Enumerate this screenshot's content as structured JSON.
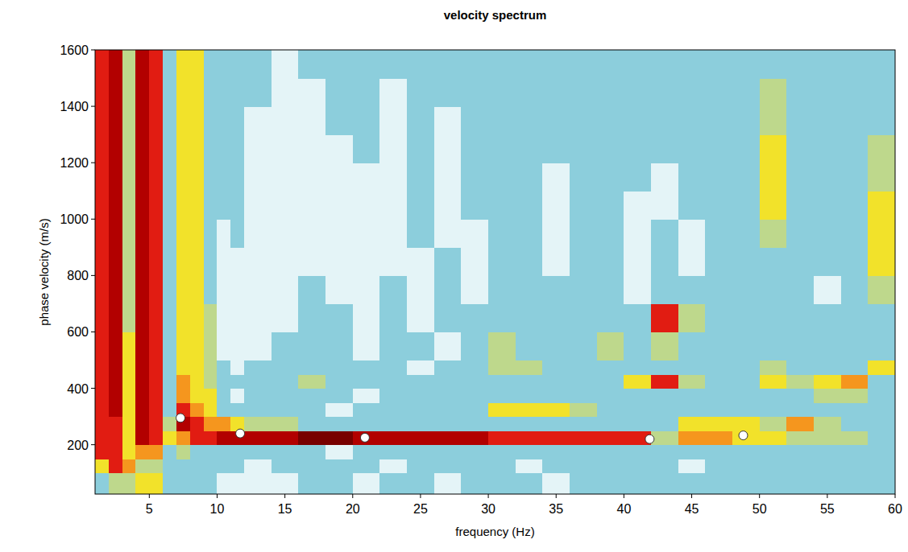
{
  "chart_data": {
    "type": "heatmap",
    "title": "velocity spectrum",
    "x_label": "frequency (Hz)",
    "y_label": "phase velocity (m/s)",
    "xlim": [
      1,
      60
    ],
    "ylim": [
      25,
      1600
    ],
    "xticks": [
      5,
      10,
      15,
      20,
      25,
      30,
      35,
      40,
      45,
      50,
      55,
      60
    ],
    "yticks": [
      200,
      400,
      600,
      800,
      1000,
      1200,
      1400,
      1600
    ],
    "grid": false,
    "x_edges": [
      1,
      2,
      3,
      4,
      5,
      6,
      7,
      8,
      9,
      10,
      11,
      12,
      14,
      16,
      18,
      20,
      22,
      24,
      26,
      28,
      30,
      32,
      34,
      36,
      38,
      40,
      42,
      44,
      46,
      48,
      50,
      52,
      54,
      56,
      58,
      60
    ],
    "y_edges": [
      25,
      100,
      150,
      200,
      250,
      300,
      350,
      400,
      450,
      500,
      600,
      700,
      800,
      900,
      1000,
      1100,
      1200,
      1300,
      1400,
      1500,
      1600
    ],
    "color_range": [
      0,
      9
    ],
    "cells": [
      [
        3,
        4,
        4,
        5,
        5,
        3,
        3,
        3,
        3,
        2,
        2,
        2,
        2,
        3,
        3,
        2,
        3,
        3,
        2,
        3,
        3,
        3,
        2,
        3,
        3,
        3,
        3,
        3,
        3,
        3,
        3,
        3,
        3,
        3,
        3
      ],
      [
        5,
        7,
        6,
        4,
        4,
        3,
        3,
        3,
        3,
        3,
        3,
        2,
        3,
        3,
        3,
        3,
        2,
        3,
        3,
        3,
        3,
        2,
        3,
        3,
        3,
        3,
        3,
        2,
        3,
        3,
        3,
        3,
        3,
        3,
        3
      ],
      [
        7,
        7,
        5,
        6,
        6,
        3,
        4,
        3,
        3,
        3,
        3,
        3,
        3,
        3,
        2,
        3,
        3,
        3,
        3,
        3,
        3,
        3,
        3,
        3,
        3,
        3,
        3,
        3,
        3,
        3,
        3,
        3,
        3,
        3,
        3
      ],
      [
        7,
        7,
        5,
        8,
        7,
        5,
        6,
        7,
        7,
        8,
        8,
        8,
        8,
        9,
        9,
        8,
        8,
        8,
        8,
        8,
        7,
        7,
        7,
        7,
        7,
        7,
        4,
        6,
        6,
        5,
        5,
        4,
        4,
        4,
        3
      ],
      [
        7,
        7,
        5,
        8,
        7,
        4,
        8,
        7,
        6,
        6,
        5,
        4,
        4,
        3,
        3,
        3,
        3,
        3,
        3,
        3,
        3,
        3,
        3,
        3,
        3,
        3,
        3,
        5,
        5,
        5,
        4,
        6,
        4,
        3,
        3
      ],
      [
        7,
        8,
        5,
        8,
        7,
        3,
        7,
        6,
        5,
        3,
        3,
        3,
        3,
        3,
        2,
        3,
        3,
        3,
        3,
        3,
        5,
        5,
        5,
        4,
        3,
        3,
        3,
        3,
        3,
        3,
        3,
        3,
        3,
        3,
        3
      ],
      [
        7,
        8,
        5,
        8,
        7,
        3,
        6,
        5,
        5,
        3,
        2,
        3,
        3,
        3,
        3,
        2,
        3,
        3,
        3,
        3,
        3,
        3,
        3,
        3,
        3,
        3,
        3,
        3,
        3,
        3,
        3,
        3,
        4,
        4,
        3
      ],
      [
        7,
        8,
        5,
        8,
        7,
        3,
        6,
        5,
        4,
        3,
        3,
        3,
        3,
        4,
        3,
        3,
        3,
        3,
        3,
        3,
        3,
        3,
        3,
        3,
        3,
        5,
        7,
        4,
        3,
        3,
        5,
        4,
        5,
        6,
        3
      ],
      [
        7,
        8,
        5,
        8,
        7,
        3,
        5,
        5,
        4,
        3,
        2,
        3,
        3,
        3,
        3,
        3,
        3,
        2,
        3,
        3,
        4,
        4,
        3,
        3,
        3,
        3,
        3,
        3,
        3,
        3,
        4,
        3,
        3,
        3,
        5
      ],
      [
        7,
        8,
        5,
        8,
        7,
        3,
        5,
        5,
        4,
        2,
        2,
        2,
        3,
        3,
        3,
        2,
        3,
        3,
        2,
        3,
        4,
        3,
        3,
        3,
        4,
        3,
        4,
        3,
        3,
        3,
        3,
        3,
        3,
        3,
        3
      ],
      [
        7,
        8,
        4,
        8,
        7,
        3,
        5,
        5,
        4,
        2,
        2,
        2,
        2,
        3,
        3,
        2,
        3,
        2,
        3,
        3,
        3,
        3,
        3,
        3,
        3,
        3,
        7,
        4,
        3,
        3,
        3,
        3,
        3,
        3,
        3
      ],
      [
        7,
        8,
        4,
        8,
        7,
        3,
        5,
        5,
        3,
        2,
        2,
        2,
        2,
        3,
        2,
        2,
        3,
        2,
        3,
        2,
        3,
        3,
        3,
        3,
        3,
        2,
        3,
        3,
        3,
        3,
        3,
        3,
        2,
        3,
        4
      ],
      [
        7,
        8,
        4,
        8,
        7,
        3,
        5,
        5,
        3,
        2,
        2,
        2,
        2,
        2,
        2,
        2,
        2,
        2,
        3,
        2,
        3,
        3,
        2,
        3,
        3,
        2,
        3,
        2,
        3,
        3,
        3,
        3,
        3,
        3,
        5
      ],
      [
        7,
        8,
        4,
        8,
        7,
        3,
        5,
        5,
        3,
        2,
        3,
        2,
        2,
        2,
        2,
        2,
        2,
        3,
        2,
        2,
        3,
        3,
        2,
        3,
        3,
        2,
        3,
        2,
        3,
        3,
        4,
        3,
        3,
        3,
        5
      ],
      [
        7,
        8,
        4,
        8,
        7,
        3,
        5,
        5,
        3,
        3,
        3,
        2,
        2,
        2,
        2,
        2,
        2,
        3,
        2,
        3,
        3,
        3,
        2,
        3,
        3,
        2,
        2,
        3,
        3,
        3,
        5,
        3,
        3,
        3,
        5
      ],
      [
        7,
        8,
        4,
        8,
        7,
        3,
        5,
        5,
        3,
        3,
        3,
        2,
        2,
        2,
        2,
        2,
        2,
        3,
        2,
        3,
        3,
        3,
        2,
        3,
        3,
        3,
        2,
        3,
        3,
        3,
        5,
        3,
        3,
        3,
        4
      ],
      [
        7,
        8,
        4,
        8,
        7,
        3,
        5,
        5,
        3,
        3,
        3,
        2,
        2,
        2,
        2,
        3,
        2,
        3,
        2,
        3,
        3,
        3,
        3,
        3,
        3,
        3,
        3,
        3,
        3,
        3,
        5,
        3,
        3,
        3,
        4
      ],
      [
        7,
        8,
        4,
        8,
        7,
        3,
        5,
        5,
        3,
        3,
        3,
        2,
        2,
        2,
        3,
        3,
        2,
        3,
        2,
        3,
        3,
        3,
        3,
        3,
        3,
        3,
        3,
        3,
        3,
        3,
        4,
        3,
        3,
        3,
        3
      ],
      [
        7,
        8,
        4,
        8,
        7,
        3,
        5,
        5,
        3,
        3,
        3,
        3,
        2,
        2,
        3,
        3,
        2,
        3,
        3,
        3,
        3,
        3,
        3,
        3,
        3,
        3,
        3,
        3,
        3,
        3,
        4,
        3,
        3,
        3,
        3
      ],
      [
        7,
        8,
        4,
        8,
        7,
        3,
        5,
        5,
        3,
        3,
        3,
        3,
        2,
        3,
        3,
        3,
        3,
        3,
        3,
        3,
        3,
        3,
        3,
        3,
        3,
        3,
        3,
        3,
        3,
        3,
        3,
        3,
        3,
        3,
        3
      ]
    ],
    "series": [
      {
        "type": "scatter",
        "marker": "circle",
        "color": "#ffffff",
        "x": [
          7.3,
          11.7,
          20.9,
          41.9,
          48.8
        ],
        "values": [
          295,
          240,
          225,
          220,
          233
        ]
      }
    ]
  }
}
